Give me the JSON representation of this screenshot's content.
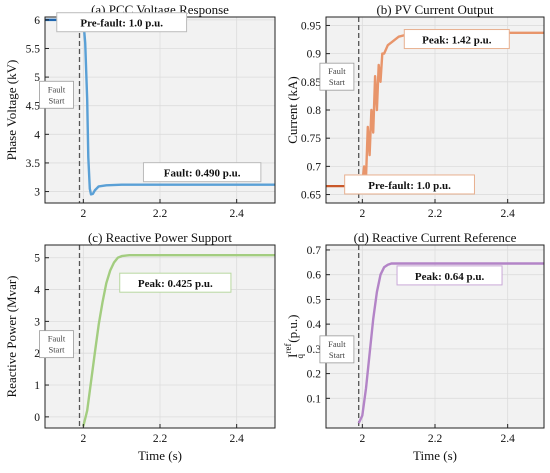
{
  "figure": {
    "background": "#ffffff",
    "plot_background": "#f2f2f2",
    "grid_color": "#dcdcdc"
  },
  "chart_data": [
    {
      "id": "a",
      "type": "line",
      "title": "(a) PCC Voltage Response",
      "xlabel": "",
      "ylabel": "Phase Voltage (kV)",
      "xlim": [
        1.9,
        2.5
      ],
      "ylim": [
        2.8,
        6.05
      ],
      "xticks": [
        2,
        2.2,
        2.4
      ],
      "xtick_labels": [
        "2",
        "2.2",
        "2.4"
      ],
      "yticks": [
        3,
        3.5,
        4,
        4.5,
        5,
        5.5,
        6
      ],
      "ytick_labels": [
        "3",
        "3.5",
        "4",
        "4.5",
        "5",
        "5.5",
        "6"
      ],
      "grid": true,
      "fault_time": 1.99,
      "fault_label": [
        "Fault",
        "Start"
      ],
      "fault_label_at": [
        1.93,
        4.7
      ],
      "series": [
        {
          "color": "#5aa0d6",
          "x": [
            1.9,
            1.99,
            2.0,
            2.005,
            2.01,
            2.013,
            2.017,
            2.02,
            2.025,
            2.03,
            2.04,
            2.06,
            2.1,
            2.2,
            2.3,
            2.4,
            2.5
          ],
          "y": [
            6.0,
            6.0,
            6.0,
            5.6,
            4.6,
            3.6,
            3.05,
            2.95,
            2.96,
            3.02,
            3.09,
            3.11,
            3.12,
            3.12,
            3.12,
            3.12,
            3.12
          ]
        },
        {
          "color": "#1f66b0",
          "x": [
            1.9,
            2.0
          ],
          "y": [
            6.0,
            6.0
          ]
        }
      ],
      "annotations": [
        {
          "text": "Pre-fault: 1.0 p.u.",
          "at": [
            2.1,
            5.95
          ],
          "border": "#bbbbbb"
        },
        {
          "text": "Fault: 0.490 p.u.",
          "at": [
            2.31,
            3.33
          ],
          "border": "#bbbbbb"
        }
      ]
    },
    {
      "id": "b",
      "type": "line",
      "title": "(b) PV Current Output",
      "xlabel": "",
      "ylabel": "Current (kA)",
      "xlim": [
        1.9,
        2.5
      ],
      "ylim": [
        0.635,
        0.965
      ],
      "xticks": [
        2,
        2.2,
        2.4
      ],
      "xtick_labels": [
        "2",
        "2.2",
        "2.4"
      ],
      "yticks": [
        0.65,
        0.7,
        0.75,
        0.8,
        0.85,
        0.9,
        0.95
      ],
      "ytick_labels": [
        "0.65",
        "0.7",
        "0.75",
        "0.8",
        "0.85",
        "0.9",
        "0.95"
      ],
      "grid": true,
      "fault_time": 1.99,
      "fault_label": [
        "Fault",
        "Start"
      ],
      "fault_label_at": [
        1.93,
        0.86
      ],
      "series": [
        {
          "color": "#e8956b",
          "x": [
            1.99,
            2.0,
            2.005,
            2.01,
            2.015,
            2.02,
            2.025,
            2.03,
            2.035,
            2.04,
            2.045,
            2.05,
            2.055,
            2.06,
            2.07,
            2.08,
            2.1,
            2.13,
            2.17,
            2.2,
            2.3,
            2.4,
            2.5
          ],
          "y": [
            0.665,
            0.67,
            0.7,
            0.68,
            0.77,
            0.72,
            0.8,
            0.76,
            0.86,
            0.8,
            0.88,
            0.85,
            0.9,
            0.9,
            0.915,
            0.92,
            0.93,
            0.935,
            0.937,
            0.937,
            0.937,
            0.937,
            0.937
          ]
        },
        {
          "color": "#c9582a",
          "x": [
            1.9,
            2.0
          ],
          "y": [
            0.665,
            0.665
          ]
        }
      ],
      "annotations": [
        {
          "text": "Peak: 1.42 p.u.",
          "at": [
            2.26,
            0.925
          ],
          "border": "#e8b08f"
        },
        {
          "text": "Pre-fault: 1.0 p.u.",
          "at": [
            2.13,
            0.667
          ],
          "border": "#e8b08f"
        }
      ]
    },
    {
      "id": "c",
      "type": "line",
      "title": "(c) Reactive Power Support",
      "xlabel": "Time (s)",
      "ylabel": "Reactive Power (Mvar)",
      "xlim": [
        1.9,
        2.5
      ],
      "ylim": [
        -0.35,
        5.4
      ],
      "xticks": [
        2,
        2.2,
        2.4
      ],
      "xtick_labels": [
        "2",
        "2.2",
        "2.4"
      ],
      "yticks": [
        0,
        1,
        2,
        3,
        4,
        5
      ],
      "ytick_labels": [
        "0",
        "1",
        "2",
        "3",
        "4",
        "5"
      ],
      "grid": true,
      "fault_time": 1.99,
      "fault_label": [
        "Fault",
        "Start"
      ],
      "fault_label_at": [
        1.93,
        2.3
      ],
      "series": [
        {
          "color": "#a3cd80",
          "x": [
            2.0,
            2.01,
            2.02,
            2.03,
            2.04,
            2.05,
            2.06,
            2.07,
            2.08,
            2.09,
            2.1,
            2.12,
            2.15,
            2.2,
            2.3,
            2.4,
            2.5
          ],
          "y": [
            -0.3,
            0.2,
            1.1,
            2.0,
            2.9,
            3.6,
            4.2,
            4.6,
            4.85,
            5.0,
            5.05,
            5.08,
            5.08,
            5.08,
            5.08,
            5.08,
            5.08
          ]
        }
      ],
      "annotations": [
        {
          "text": "Peak: 0.425 p.u.",
          "at": [
            2.24,
            4.2
          ],
          "border": "#b8d8a0"
        }
      ]
    },
    {
      "id": "d",
      "type": "line",
      "title": "(d) Reactive Current Reference",
      "xlabel": "Time (s)",
      "ylabel": "",
      "ylabel_parts": [
        "I",
        "ref",
        "q",
        "(p.u.)"
      ],
      "xlim": [
        1.9,
        2.5
      ],
      "ylim": [
        -0.02,
        0.72
      ],
      "xticks": [
        2,
        2.2,
        2.4
      ],
      "xtick_labels": [
        "2",
        "2.2",
        "2.4"
      ],
      "yticks": [
        0.1,
        0.2,
        0.3,
        0.4,
        0.5,
        0.6,
        0.7
      ],
      "ytick_labels": [
        "0.1",
        "0.2",
        "0.3",
        "0.4",
        "0.5",
        "0.6",
        "0.7"
      ],
      "grid": true,
      "fault_time": 1.99,
      "fault_label": [
        "Fault",
        "Start"
      ],
      "fault_label_at": [
        1.93,
        0.3
      ],
      "series": [
        {
          "color": "#b384c7",
          "x": [
            1.99,
            2.0,
            2.01,
            2.02,
            2.03,
            2.04,
            2.05,
            2.06,
            2.07,
            2.08,
            2.1,
            2.12,
            2.15,
            2.2,
            2.3,
            2.4,
            2.5
          ],
          "y": [
            0.0,
            0.03,
            0.14,
            0.28,
            0.42,
            0.53,
            0.6,
            0.63,
            0.64,
            0.645,
            0.645,
            0.645,
            0.645,
            0.645,
            0.645,
            0.645,
            0.645
          ]
        }
      ],
      "annotations": [
        {
          "text": "Peak: 0.64 p.u.",
          "at": [
            2.24,
            0.595
          ],
          "border": "#c9a8d8"
        }
      ]
    }
  ]
}
